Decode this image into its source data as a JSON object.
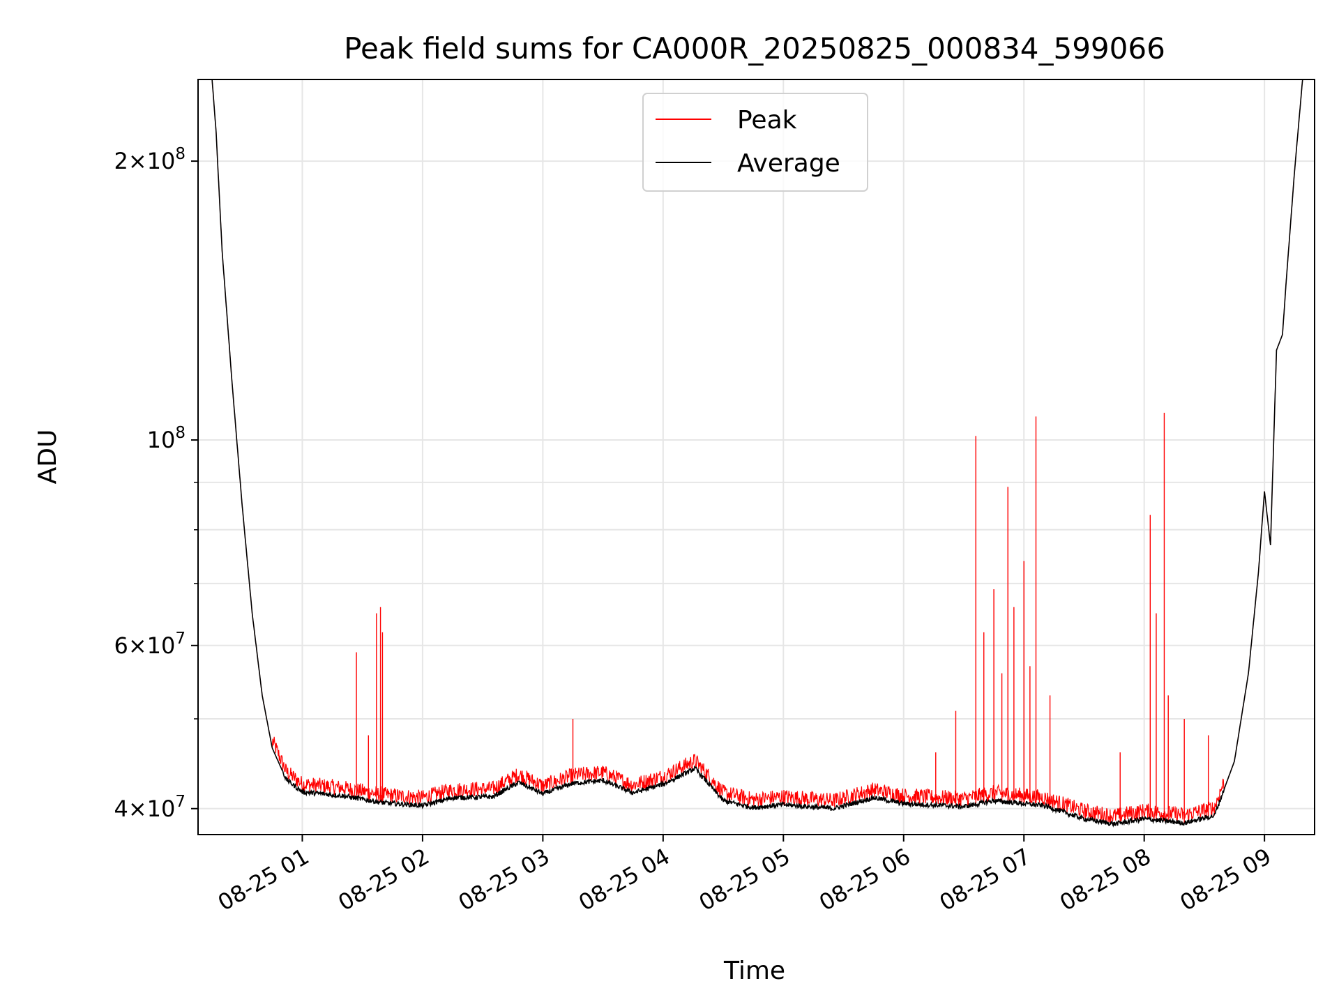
{
  "chart_data": {
    "type": "line",
    "title": "Peak field sums for CA000R_20250825_000834_599066",
    "xlabel": "Time",
    "ylabel": "ADU",
    "y_scale": "log",
    "grid": true,
    "legend_position": "top-center",
    "x_range": [
      "2025-08-25 00:08",
      "2025-08-25 09:25"
    ],
    "ylim": [
      37500000,
      245000000
    ],
    "x_ticks": [
      "08-25 01",
      "08-25 02",
      "08-25 03",
      "08-25 04",
      "08-25 05",
      "08-25 06",
      "08-25 07",
      "08-25 08",
      "08-25 09"
    ],
    "y_ticks": [
      {
        "value": 40000000,
        "mantissa": "4",
        "exponent": "7"
      },
      {
        "value": 60000000,
        "mantissa": "6",
        "exponent": "7"
      },
      {
        "value": 100000000,
        "mantissa": "",
        "exponent": "8"
      },
      {
        "value": 200000000,
        "mantissa": "2",
        "exponent": "8"
      }
    ],
    "series": [
      {
        "name": "Average",
        "color": "#000000",
        "points": [
          [
            "2025-08-25 00:08",
            245000000
          ],
          [
            "2025-08-25 00:15",
            245000000
          ],
          [
            "2025-08-25 00:17",
            215000000
          ],
          [
            "2025-08-25 00:20",
            160000000
          ],
          [
            "2025-08-25 00:25",
            115000000
          ],
          [
            "2025-08-25 00:30",
            85000000
          ],
          [
            "2025-08-25 00:35",
            65000000
          ],
          [
            "2025-08-25 00:40",
            53000000
          ],
          [
            "2025-08-25 00:45",
            46500000
          ],
          [
            "2025-08-25 00:52",
            43000000
          ],
          [
            "2025-08-25 01:00",
            41700000
          ],
          [
            "2025-08-25 01:20",
            41300000
          ],
          [
            "2025-08-25 01:40",
            40600000
          ],
          [
            "2025-08-25 02:00",
            40300000
          ],
          [
            "2025-08-25 02:15",
            41100000
          ],
          [
            "2025-08-25 02:35",
            41200000
          ],
          [
            "2025-08-25 02:48",
            42700000
          ],
          [
            "2025-08-25 03:00",
            41500000
          ],
          [
            "2025-08-25 03:15",
            42600000
          ],
          [
            "2025-08-25 03:30",
            42900000
          ],
          [
            "2025-08-25 03:45",
            41600000
          ],
          [
            "2025-08-25 04:00",
            42500000
          ],
          [
            "2025-08-25 04:16",
            44200000
          ],
          [
            "2025-08-25 04:30",
            40800000
          ],
          [
            "2025-08-25 04:45",
            40100000
          ],
          [
            "2025-08-25 05:00",
            40400000
          ],
          [
            "2025-08-25 05:25",
            40000000
          ],
          [
            "2025-08-25 05:45",
            41100000
          ],
          [
            "2025-08-25 06:00",
            40500000
          ],
          [
            "2025-08-25 06:30",
            40200000
          ],
          [
            "2025-08-25 06:45",
            40800000
          ],
          [
            "2025-08-25 07:10",
            40300000
          ],
          [
            "2025-08-25 07:30",
            39000000
          ],
          [
            "2025-08-25 07:45",
            38500000
          ],
          [
            "2025-08-25 08:00",
            39000000
          ],
          [
            "2025-08-25 08:20",
            38600000
          ],
          [
            "2025-08-25 08:35",
            39300000
          ],
          [
            "2025-08-25 08:45",
            45000000
          ],
          [
            "2025-08-25 08:52",
            56000000
          ],
          [
            "2025-08-25 08:57",
            72000000
          ],
          [
            "2025-08-25 09:00",
            88000000
          ],
          [
            "2025-08-25 09:03",
            77000000
          ],
          [
            "2025-08-25 09:06",
            125000000
          ],
          [
            "2025-08-25 09:09",
            130000000
          ],
          [
            "2025-08-25 09:11",
            150000000
          ],
          [
            "2025-08-25 09:15",
            195000000
          ],
          [
            "2025-08-25 09:19",
            245000000
          ],
          [
            "2025-08-25 09:25",
            245000000
          ]
        ]
      },
      {
        "name": "Peak",
        "color": "#ff0000",
        "spikes": [
          [
            "2025-08-25 01:27",
            59000000
          ],
          [
            "2025-08-25 01:33",
            48000000
          ],
          [
            "2025-08-25 01:37",
            65000000
          ],
          [
            "2025-08-25 01:39",
            66000000
          ],
          [
            "2025-08-25 01:40",
            62000000
          ],
          [
            "2025-08-25 03:15",
            50000000
          ],
          [
            "2025-08-25 06:16",
            46000000
          ],
          [
            "2025-08-25 06:26",
            51000000
          ],
          [
            "2025-08-25 06:36",
            101000000
          ],
          [
            "2025-08-25 06:40",
            62000000
          ],
          [
            "2025-08-25 06:45",
            69000000
          ],
          [
            "2025-08-25 06:49",
            56000000
          ],
          [
            "2025-08-25 06:52",
            89000000
          ],
          [
            "2025-08-25 06:55",
            66000000
          ],
          [
            "2025-08-25 07:00",
            74000000
          ],
          [
            "2025-08-25 07:03",
            57000000
          ],
          [
            "2025-08-25 07:06",
            106000000
          ],
          [
            "2025-08-25 07:13",
            53000000
          ],
          [
            "2025-08-25 07:48",
            46000000
          ],
          [
            "2025-08-25 08:03",
            83000000
          ],
          [
            "2025-08-25 08:06",
            65000000
          ],
          [
            "2025-08-25 08:10",
            107000000
          ],
          [
            "2025-08-25 08:12",
            53000000
          ],
          [
            "2025-08-25 08:20",
            50000000
          ],
          [
            "2025-08-25 08:32",
            48000000
          ]
        ]
      }
    ]
  }
}
